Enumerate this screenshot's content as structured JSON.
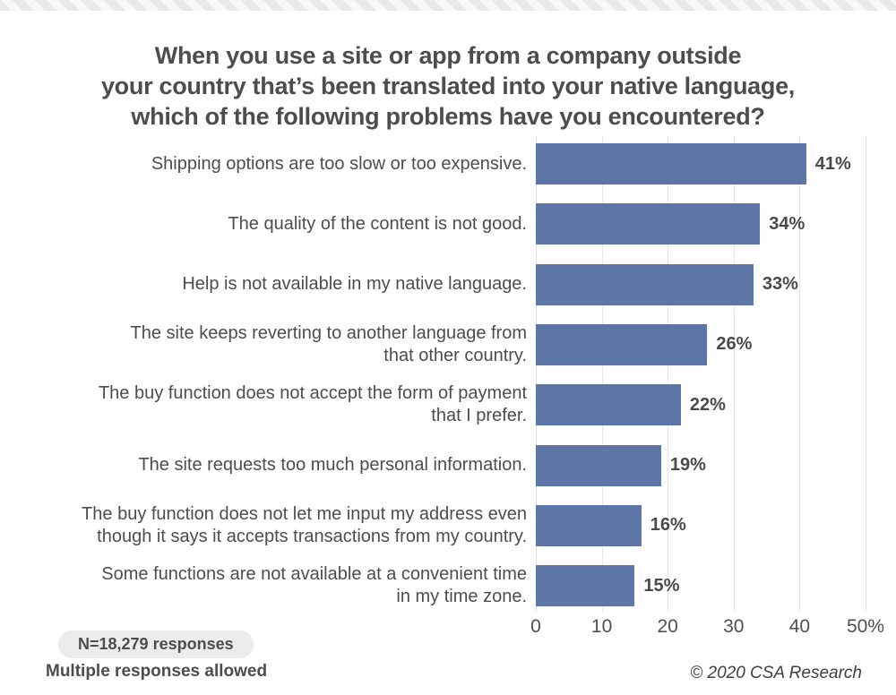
{
  "title": "When you use a site or app from a company outside\nyour country that’s been translated into your native language,\nwhich of the following problems have you encountered?",
  "chart_data": {
    "type": "bar",
    "orientation": "horizontal",
    "categories": [
      "Shipping options are too slow or too expensive.",
      "The quality of the content is not good.",
      "Help is not available in my native language.",
      "The site keeps reverting to another language from\nthat other country.",
      "The buy function does not accept the form of payment\nthat I prefer.",
      "The site requests too much personal information.",
      "The buy function does not let me input my address even\nthough it says it accepts transactions from my country.",
      "Some functions are not available at a convenient time\nin my time zone."
    ],
    "values": [
      41,
      34,
      33,
      26,
      22,
      19,
      16,
      15
    ],
    "value_labels": [
      "41%",
      "34%",
      "33%",
      "26%",
      "22%",
      "19%",
      "16%",
      "15%"
    ],
    "xlim": [
      0,
      50
    ],
    "x_ticks": [
      {
        "label": "0",
        "value": 0
      },
      {
        "label": "10",
        "value": 10
      },
      {
        "label": "20",
        "value": 20
      },
      {
        "label": "30",
        "value": 30
      },
      {
        "label": "40",
        "value": 40
      },
      {
        "label": "50%",
        "value": 50
      }
    ],
    "grid": true,
    "bar_color": "#5d75a7",
    "gridline_color": "#e7e7ea"
  },
  "footer": {
    "sample_badge": "N=18,279 responses",
    "note": "Multiple responses allowed",
    "copyright": "© 2020 CSA Research"
  },
  "colors": {
    "title_text": "#4d4d4d",
    "label_text": "#4d4d4d",
    "value_text": "#4a4a4a",
    "tick_text": "#4f4f4f",
    "pill_background": "#ececec",
    "stripe_light": "#f8f8f8",
    "stripe_dark": "#e9e9e9",
    "background": "#ffffff"
  }
}
